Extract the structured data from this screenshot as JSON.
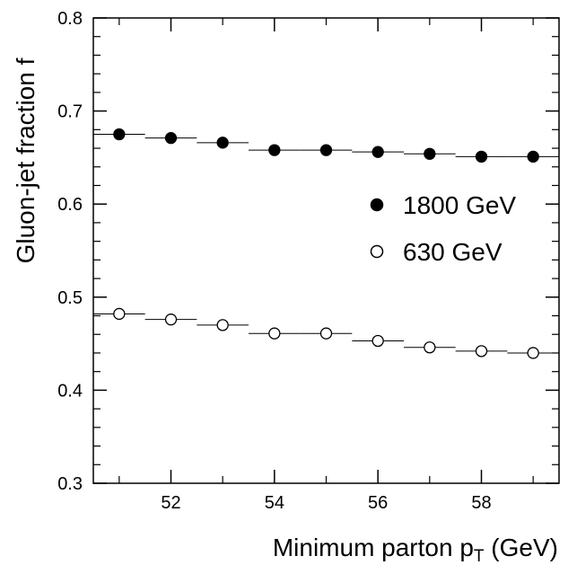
{
  "chart_data": {
    "type": "scatter",
    "xlabel": "Minimum parton p",
    "xlabel_subscript": "T",
    "xlabel_suffix": " (GeV)",
    "ylabel": "Gluon-jet fraction f",
    "xlim": [
      50.5,
      59.5
    ],
    "ylim": [
      0.3,
      0.8
    ],
    "xticks": [
      52,
      54,
      56,
      58
    ],
    "xtick_labels": [
      "52",
      "54",
      "56",
      "58"
    ],
    "yticks": [
      0.3,
      0.4,
      0.5,
      0.6,
      0.7,
      0.8
    ],
    "ytick_labels": [
      "0.3",
      "0.4",
      "0.5",
      "0.6",
      "0.7",
      "0.8"
    ],
    "grid": false,
    "legend_position": "right",
    "series": [
      {
        "name": "1800 GeV",
        "marker": "filled-circle",
        "x": [
          51,
          52,
          53,
          54,
          55,
          56,
          57,
          58,
          59
        ],
        "y": [
          0.675,
          0.671,
          0.666,
          0.658,
          0.658,
          0.656,
          0.654,
          0.651,
          0.651
        ]
      },
      {
        "name": "630 GeV",
        "marker": "open-circle",
        "x": [
          51,
          52,
          53,
          54,
          55,
          56,
          57,
          58,
          59
        ],
        "y": [
          0.482,
          0.476,
          0.47,
          0.461,
          0.461,
          0.453,
          0.446,
          0.442,
          0.44
        ]
      }
    ]
  }
}
